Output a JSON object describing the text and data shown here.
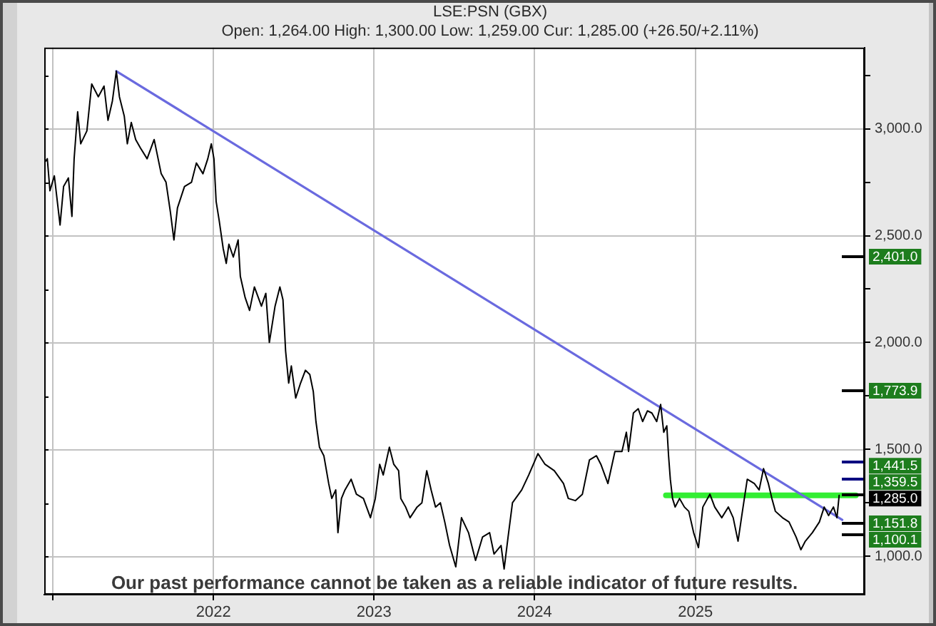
{
  "chart_data": {
    "type": "line",
    "title": "LSE:PSN (GBX)",
    "subtitle": "Open: 1,264.00 High: 1,300.00 Low: 1,259.00 Cur: 1,285.00 (+26.50/+2.11%)",
    "xlim": [
      "2020-12-12",
      "2026-01-21"
    ],
    "xticks": [
      {
        "value": "2021",
        "label": null
      },
      "2022",
      "2023",
      "2024",
      "2025"
    ],
    "ylim": [
      820,
      3380
    ],
    "yticks": [
      {
        "value": 1000,
        "label": "1,000.0"
      },
      {
        "value": 1250,
        "label": null
      },
      {
        "value": 1500,
        "label": "1,500.0"
      },
      {
        "value": 1750,
        "label": null
      },
      {
        "value": 2000,
        "label": "2,000.0"
      },
      {
        "value": 2250,
        "label": null
      },
      {
        "value": 2500,
        "label": "2,500.0"
      },
      {
        "value": 2750,
        "label": null
      },
      {
        "value": 3000,
        "label": "3,000.0"
      },
      {
        "value": 3250,
        "label": null
      }
    ],
    "grid": true,
    "legend": false,
    "marker": "none",
    "line_style": "solid",
    "series": [
      {
        "color": "#000000",
        "x": [
          "2020-12-16",
          "2020-12-19",
          "2020-12-25",
          "2021-01-04",
          "2021-01-17",
          "2021-01-25",
          "2021-02-05",
          "2021-02-13",
          "2021-02-18",
          "2021-02-26",
          "2021-03-05",
          "2021-03-19",
          "2021-03-30",
          "2021-04-14",
          "2021-04-27",
          "2021-05-06",
          "2021-05-16",
          "2021-05-25",
          "2021-06-01",
          "2021-06-12",
          "2021-06-19",
          "2021-06-28",
          "2021-07-08",
          "2021-07-19",
          "2021-08-03",
          "2021-08-19",
          "2021-09-04",
          "2021-09-15",
          "2021-09-25",
          "2021-10-03",
          "2021-10-11",
          "2021-10-27",
          "2021-11-12",
          "2021-11-23",
          "2021-12-08",
          "2021-12-19",
          "2021-12-27",
          "2022-01-02",
          "2022-01-07",
          "2022-01-14",
          "2022-01-23",
          "2022-01-30",
          "2022-02-05",
          "2022-02-15",
          "2022-02-26",
          "2022-03-03",
          "2022-03-14",
          "2022-03-24",
          "2022-04-04",
          "2022-04-20",
          "2022-04-30",
          "2022-05-08",
          "2022-05-21",
          "2022-06-01",
          "2022-06-08",
          "2022-06-14",
          "2022-06-21",
          "2022-06-27",
          "2022-07-07",
          "2022-07-18",
          "2022-07-29",
          "2022-08-08",
          "2022-08-16",
          "2022-08-22",
          "2022-08-30",
          "2022-09-09",
          "2022-09-20",
          "2022-09-27",
          "2022-10-06",
          "2022-10-11",
          "2022-10-19",
          "2022-10-27",
          "2022-11-10",
          "2022-11-22",
          "2022-12-08",
          "2022-12-24",
          "2023-01-04",
          "2023-01-14",
          "2023-01-22",
          "2023-02-05",
          "2023-02-15",
          "2023-02-26",
          "2023-03-03",
          "2023-03-14",
          "2023-03-24",
          "2023-04-09",
          "2023-04-20",
          "2023-05-01",
          "2023-05-11",
          "2023-05-21",
          "2023-06-01",
          "2023-06-11",
          "2023-06-22",
          "2023-07-06",
          "2023-07-19",
          "2023-08-04",
          "2023-08-20",
          "2023-09-05",
          "2023-09-21",
          "2023-10-01",
          "2023-10-17",
          "2023-10-24",
          "2023-11-02",
          "2023-11-12",
          "2023-12-03",
          "2023-12-19",
          "2024-01-09",
          "2024-01-25",
          "2024-02-15",
          "2024-03-07",
          "2024-03-18",
          "2024-04-03",
          "2024-04-19",
          "2024-05-05",
          "2024-05-21",
          "2024-05-31",
          "2024-06-16",
          "2024-07-02",
          "2024-07-18",
          "2024-07-28",
          "2024-08-02",
          "2024-08-13",
          "2024-08-24",
          "2024-09-03",
          "2024-09-14",
          "2024-09-24",
          "2024-10-05",
          "2024-10-14",
          "2024-10-21",
          "2024-10-28",
          "2024-11-01",
          "2024-11-05",
          "2024-11-10",
          "2024-11-16",
          "2024-11-26",
          "2024-12-07",
          "2024-12-17",
          "2024-12-28",
          "2025-01-08",
          "2025-01-18",
          "2025-02-03",
          "2025-02-14",
          "2025-03-02",
          "2025-03-17",
          "2025-03-28",
          "2025-04-08",
          "2025-04-18",
          "2025-04-29",
          "2025-05-15",
          "2025-05-26",
          "2025-06-05",
          "2025-06-16",
          "2025-06-24",
          "2025-07-02",
          "2025-07-18",
          "2025-08-02",
          "2025-08-18",
          "2025-08-29",
          "2025-09-08",
          "2025-09-24",
          "2025-10-10",
          "2025-10-21",
          "2025-10-31",
          "2025-11-11",
          "2025-11-19",
          "2025-11-24"
        ],
        "values": [
          2850,
          2860,
          2710,
          2780,
          2550,
          2730,
          2770,
          2590,
          2860,
          3080,
          2930,
          2990,
          3210,
          3150,
          3200,
          3040,
          3130,
          3270,
          3150,
          3060,
          2930,
          3030,
          2950,
          2910,
          2860,
          2950,
          2790,
          2750,
          2610,
          2480,
          2630,
          2730,
          2750,
          2840,
          2790,
          2860,
          2930,
          2860,
          2660,
          2570,
          2440,
          2370,
          2460,
          2400,
          2480,
          2310,
          2210,
          2150,
          2260,
          2170,
          2230,
          2000,
          2170,
          2260,
          2200,
          1960,
          1810,
          1890,
          1740,
          1810,
          1870,
          1850,
          1770,
          1630,
          1510,
          1470,
          1340,
          1270,
          1310,
          1110,
          1270,
          1310,
          1360,
          1290,
          1270,
          1180,
          1270,
          1430,
          1380,
          1510,
          1430,
          1400,
          1270,
          1230,
          1180,
          1230,
          1250,
          1400,
          1310,
          1230,
          1250,
          1160,
          1050,
          950,
          1180,
          1110,
          980,
          1090,
          1110,
          1010,
          1050,
          940,
          1090,
          1250,
          1310,
          1380,
          1480,
          1430,
          1400,
          1340,
          1270,
          1260,
          1290,
          1450,
          1470,
          1430,
          1340,
          1490,
          1490,
          1580,
          1490,
          1670,
          1690,
          1630,
          1680,
          1670,
          1630,
          1710,
          1580,
          1610,
          1470,
          1360,
          1270,
          1230,
          1270,
          1230,
          1210,
          1110,
          1040,
          1230,
          1290,
          1230,
          1180,
          1230,
          1180,
          1070,
          1210,
          1360,
          1340,
          1310,
          1410,
          1340,
          1270,
          1210,
          1180,
          1160,
          1090,
          1030,
          1070,
          1110,
          1160,
          1230,
          1190,
          1230,
          1180,
          1285
        ]
      },
      {
        "type": "line",
        "color": "#6a6adf",
        "x": [
          "2021-05-25",
          "2025-12-01"
        ],
        "values": [
          3270,
          1170
        ]
      },
      {
        "type": "line",
        "color": "#33ee33",
        "x": [
          "2024-10-26",
          "2026-01-01"
        ],
        "values": [
          1285,
          1285
        ]
      }
    ],
    "ref_lines": [
      {
        "axis": "y",
        "value": 2401.0,
        "label": "2,401.0",
        "color": "#000000"
      },
      {
        "axis": "y",
        "value": 1773.9,
        "label": "1,773.9",
        "color": "#000000"
      },
      {
        "axis": "y",
        "value": 1441.5,
        "label": "1,441.5",
        "color": "#000080"
      },
      {
        "axis": "y",
        "value": 1359.5,
        "label": "1,359.5",
        "color": "#000080"
      },
      {
        "axis": "y",
        "value": 1285,
        "label": "1,285.0",
        "color": "#000000"
      },
      {
        "axis": "y",
        "value": 1151.8,
        "label": "1,151.8",
        "color": "#000000"
      },
      {
        "axis": "y",
        "value": 1100.1,
        "label": "1,100.1",
        "color": "#000000"
      }
    ],
    "annotations": [
      "Our past performance cannot be taken as a reliable indicator of future results."
    ]
  }
}
